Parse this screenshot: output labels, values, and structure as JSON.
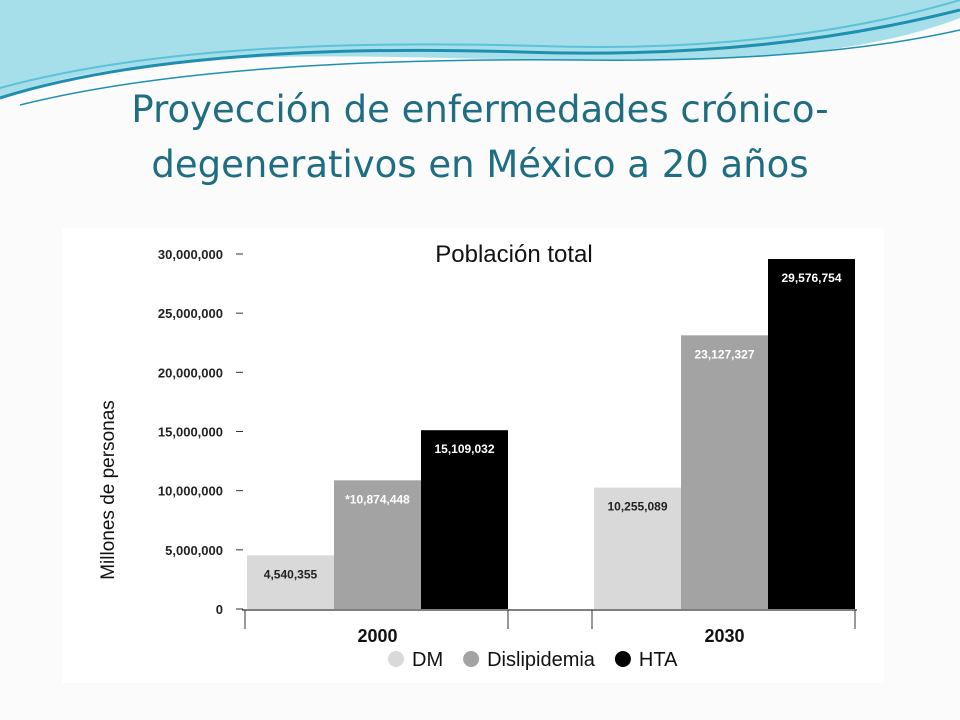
{
  "slide": {
    "title_line1": "Proyección de enfermedades crónico-",
    "title_line2": "degenerativos en México a 20 años",
    "title_color": "#1f6d82",
    "wave_colors": [
      "#1f8fb0",
      "#5cc2d8",
      "#a6dfe9"
    ]
  },
  "chart_data": {
    "type": "bar",
    "title": "Población total",
    "ylabel": "Millones de personas",
    "xlabel": "",
    "categories": [
      "2000",
      "2030"
    ],
    "ylim": [
      0,
      30000000
    ],
    "yticks": [
      0,
      5000000,
      10000000,
      15000000,
      20000000,
      25000000,
      30000000
    ],
    "ytick_labels": [
      "0",
      "5,000,000",
      "10,000,000",
      "15,000,000",
      "20,000,000",
      "25,000,000",
      "30,000,000"
    ],
    "grid": false,
    "legend_position": "bottom",
    "series": [
      {
        "name": "DM",
        "color": "#d9d9d9",
        "label_color": "#222222",
        "values": [
          4540355,
          10255089
        ],
        "labels": [
          "4,540,355",
          "10,255,089"
        ]
      },
      {
        "name": "Dislipidemia",
        "color": "#a3a3a3",
        "label_color": "#ffffff",
        "values": [
          10874448,
          23127327
        ],
        "labels": [
          "*10,874,448",
          "23,127,327"
        ]
      },
      {
        "name": "HTA",
        "color": "#000000",
        "label_color": "#ffffff",
        "values": [
          15109032,
          29576754
        ],
        "labels": [
          "15,109,032",
          "29,576,754"
        ]
      }
    ]
  }
}
